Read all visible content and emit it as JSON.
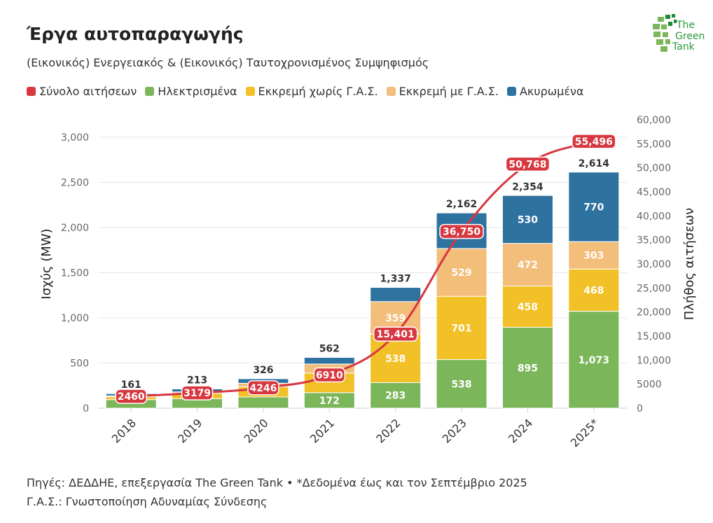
{
  "title": "Έργα αυτοπαραγωγής",
  "subtitle": "(Εικονικός) Ενεργειακός & (Εικονικός) Ταυτοχρονισμένος Συμψηφισμός",
  "logo_text": "The Green Tank",
  "source_line1": "Πηγές: ΔΕΔΔΗΕ, επεξεργασία The Green Tank • *Δεδομένα έως και τον Σεπτέμβριο 2025",
  "source_line2": "Γ.Α.Σ.: Γνωστοποίηση Αδυναμίας Σύνδεσης",
  "colors": {
    "line": "#d7373f",
    "green": "#7cb65a",
    "yellow": "#f2c027",
    "peach": "#f3bd7a",
    "blue": "#2e72a0"
  },
  "chart_data": {
    "type": "bar",
    "categories": [
      "2018",
      "2019",
      "2020",
      "2021",
      "2022",
      "2023",
      "2024",
      "2025*"
    ],
    "ylabel": "Ισχύς (MW)",
    "y2label": "Πλήθος αιτήσεων",
    "ylim": [
      0,
      3194
    ],
    "y2lim": [
      0,
      60000
    ],
    "yticks": [
      "0",
      "500",
      "1,000",
      "1,500",
      "2,000",
      "2,500",
      "3,000"
    ],
    "y2ticks": [
      "0",
      "5000",
      "10,000",
      "15,000",
      "20,000",
      "25,000",
      "30,000",
      "35,000",
      "40,000",
      "45,000",
      "50,000",
      "55,000",
      "60,000"
    ],
    "grid": true,
    "legend_placement": "top-left",
    "series": [
      {
        "name": "Ηλεκτρισμένα",
        "color": "#7cb65a",
        "values": [
          95,
          105,
          124,
          172,
          283,
          538,
          895,
          1073
        ],
        "labels": [
          "",
          "",
          "",
          "172",
          "283",
          "538",
          "895",
          "1,073"
        ]
      },
      {
        "name": "Εκκρεμή χωρίς Γ.Α.Σ.",
        "color": "#f2c027",
        "values": [
          30,
          60,
          112,
          217,
          538,
          701,
          458,
          468
        ],
        "labels": [
          "",
          "",
          "",
          "",
          "538",
          "701",
          "458",
          "468"
        ]
      },
      {
        "name": "Εκκρεμή με Γ.Α.Σ.",
        "color": "#f3bd7a",
        "values": [
          12,
          15,
          40,
          100,
          359,
          529,
          472,
          303
        ],
        "labels": [
          "",
          "",
          "",
          "",
          "359",
          "529",
          "472",
          "303"
        ]
      },
      {
        "name": "Ακυρωμένα",
        "color": "#2e72a0",
        "values": [
          24,
          33,
          50,
          73,
          157,
          394,
          530,
          770
        ],
        "labels": [
          "",
          "",
          "",
          "",
          "",
          "",
          "530",
          "770"
        ]
      }
    ],
    "totals": [
      "161",
      "213",
      "326",
      "562",
      "1,337",
      "2,162",
      "2,354",
      "2,614"
    ],
    "total_values": [
      161,
      213,
      326,
      562,
      1337,
      2162,
      2354,
      2614
    ],
    "line": {
      "name": "Σύνολο αιτήσεων",
      "color": "#d7373f",
      "axis": "right",
      "values": [
        2460,
        3179,
        4246,
        6910,
        15401,
        36750,
        50768,
        55496
      ],
      "labels": [
        "2460",
        "3179",
        "4246",
        "6910",
        "15,401",
        "36,750",
        "50,768",
        "55,496"
      ]
    }
  }
}
